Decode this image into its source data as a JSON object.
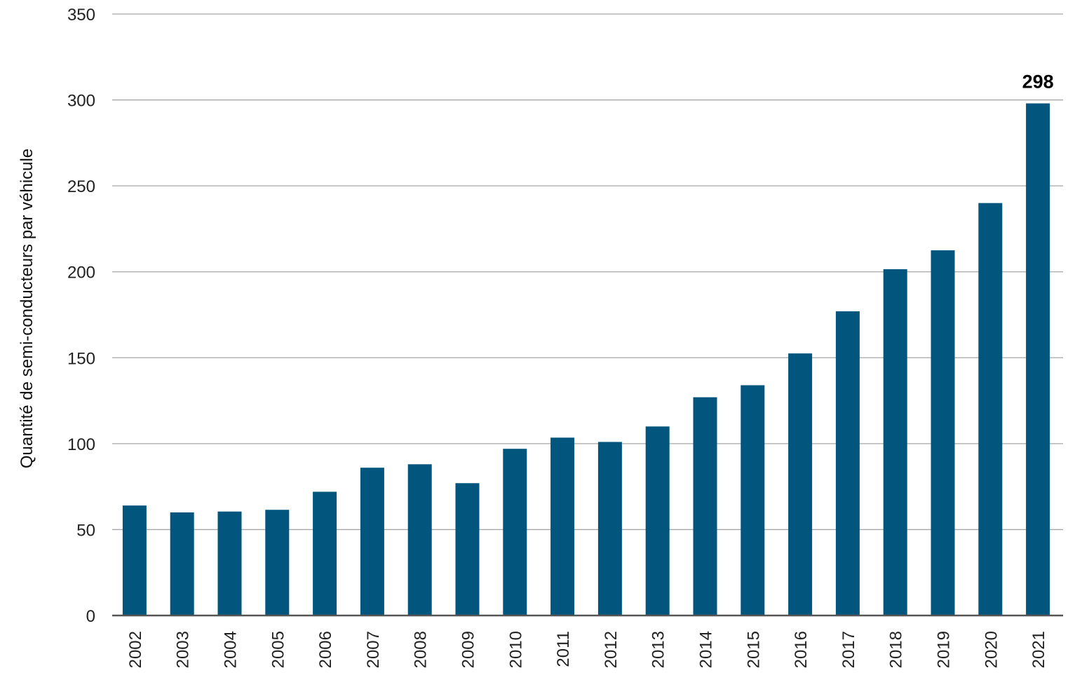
{
  "chart_data": {
    "type": "bar",
    "title": "",
    "xlabel": "",
    "ylabel": "Quantité de semi-conducteurs par véhicule",
    "categories": [
      "2002",
      "2003",
      "2004",
      "2005",
      "2006",
      "2007",
      "2008",
      "2009",
      "2010",
      "2011",
      "2012",
      "2013",
      "2014",
      "2015",
      "2016",
      "2017",
      "2018",
      "2019",
      "2020",
      "2021"
    ],
    "values": [
      64,
      60,
      60.5,
      61.5,
      72,
      86,
      88,
      77,
      97,
      103.5,
      101,
      110,
      127,
      134,
      152.5,
      177,
      201.5,
      212.5,
      240,
      298
    ],
    "ylim": [
      0,
      350
    ],
    "yticks": [
      0,
      50,
      100,
      150,
      200,
      250,
      300,
      350
    ],
    "grid": true,
    "bar_color": "#02567e",
    "data_labels": [
      {
        "category": "2021",
        "text": "298"
      }
    ]
  }
}
